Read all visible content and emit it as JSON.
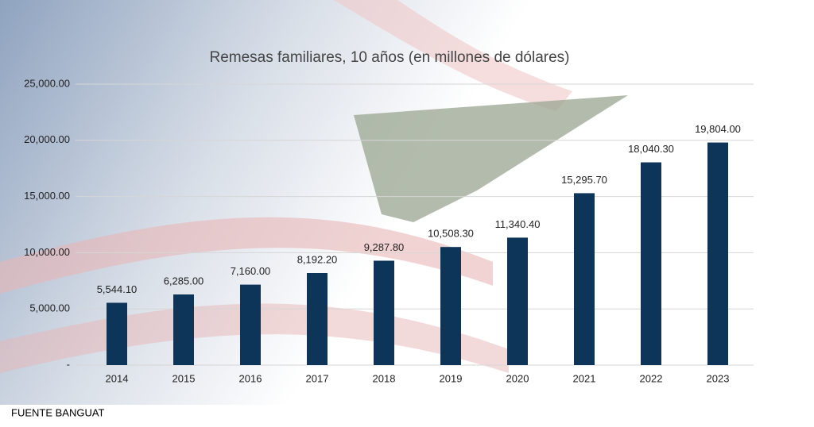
{
  "chart_data": {
    "type": "bar",
    "title": "Remesas familiares, 10 años (en millones de dólares)",
    "categories": [
      "2014",
      "2015",
      "2016",
      "2017",
      "2018",
      "2019",
      "2020",
      "2021",
      "2022",
      "2023"
    ],
    "values": [
      5544.1,
      6285,
      7160,
      8192.2,
      9287.8,
      10508.3,
      11340.4,
      15295.7,
      18040.3,
      19804
    ],
    "value_labels": [
      "5,544.10",
      "6,285.00",
      "7,160.00",
      "8,192.20",
      "9,287.80",
      "10,508.30",
      "11,340.40",
      "15,295.70",
      "18,040.30",
      "19,804.00"
    ],
    "color": "#0d3459",
    "ylim": [
      0,
      25000
    ],
    "yticks": [
      {
        "value": 0,
        "label": "-"
      },
      {
        "value": 5000,
        "label": "5,000.00"
      },
      {
        "value": 10000,
        "label": "10,000.00"
      },
      {
        "value": 15000,
        "label": "15,000.00"
      },
      {
        "value": 20000,
        "label": "20,000.00"
      },
      {
        "value": 25000,
        "label": "25,000.00"
      }
    ],
    "grid": true,
    "source": "FUENTE BANGUAT"
  }
}
